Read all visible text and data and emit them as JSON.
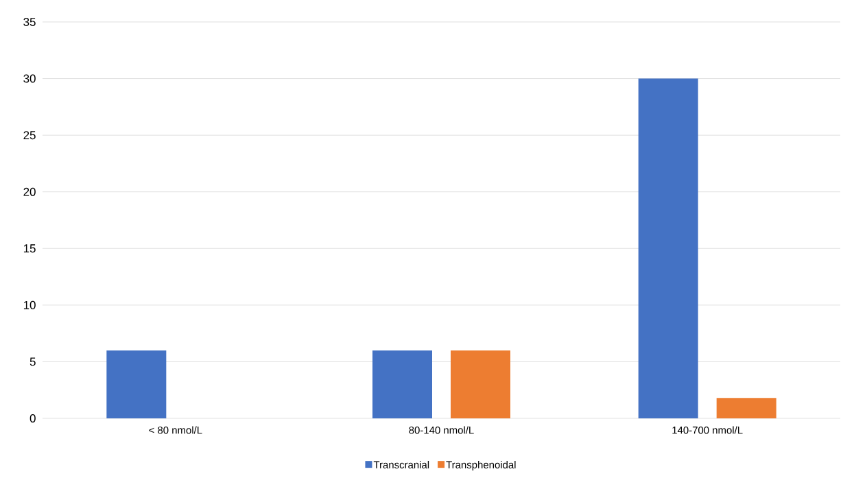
{
  "chart_data": {
    "type": "bar",
    "categories": [
      "< 80 nmol/L",
      "80-140 nmol/L",
      "140-700 nmol/L"
    ],
    "series": [
      {
        "name": "Transcranial",
        "color": "#4472c4",
        "values": [
          6,
          6,
          30
        ]
      },
      {
        "name": "Transphenoidal",
        "color": "#ed7d31",
        "values": [
          0,
          6,
          1.8
        ]
      }
    ],
    "ylim": [
      0,
      35
    ],
    "yticks": [
      0,
      5,
      10,
      15,
      20,
      25,
      30,
      35
    ],
    "grid": "y",
    "legend": "bottom"
  }
}
